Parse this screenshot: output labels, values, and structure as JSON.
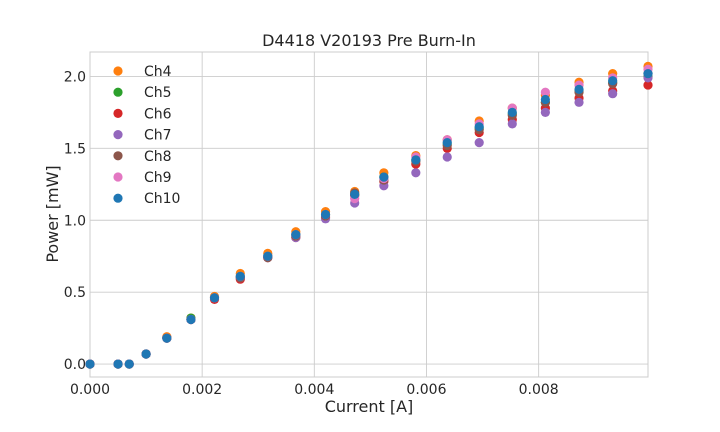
{
  "chart_data": {
    "type": "scatter",
    "title": "D4418 V20193 Pre Burn-In",
    "xlabel": "Current [A]",
    "ylabel": "Power [mW]",
    "xlim": [
      0,
      0.00995
    ],
    "ylim": [
      -0.09,
      2.17
    ],
    "x_ticks": [
      "0.000",
      "0.002",
      "0.004",
      "0.006",
      "0.008"
    ],
    "y_ticks": [
      "0.0",
      "0.5",
      "1.0",
      "1.5",
      "2.0"
    ],
    "grid": true,
    "legend_position": "upper-left",
    "x": [
      0,
      0.0005,
      0.0007,
      0.001,
      0.00137,
      0.0018,
      0.00222,
      0.00268,
      0.00317,
      0.00367,
      0.0042,
      0.00472,
      0.00524,
      0.00581,
      0.00637,
      0.00694,
      0.00753,
      0.00812,
      0.00872,
      0.00932,
      0.00995
    ],
    "series": [
      {
        "name": "Ch4",
        "color": "#ff7f0e",
        "values": [
          0,
          0,
          0,
          0.07,
          0.19,
          0.32,
          0.47,
          0.63,
          0.77,
          0.92,
          1.06,
          1.2,
          1.33,
          1.45,
          1.56,
          1.69,
          1.78,
          1.87,
          1.96,
          2.02,
          2.07
        ]
      },
      {
        "name": "Ch5",
        "color": "#2ca02c",
        "values": [
          0,
          0,
          0,
          0.07,
          0.18,
          0.32,
          0.46,
          0.61,
          0.75,
          0.9,
          1.04,
          1.18,
          1.3,
          1.42,
          1.53,
          1.64,
          1.74,
          1.82,
          1.9,
          1.96,
          2.0
        ]
      },
      {
        "name": "Ch6",
        "color": "#d62728",
        "values": [
          0,
          0,
          0,
          0.07,
          0.18,
          0.31,
          0.45,
          0.59,
          0.74,
          0.88,
          1.02,
          1.17,
          1.27,
          1.39,
          1.5,
          1.61,
          1.7,
          1.78,
          1.85,
          1.9,
          1.94
        ]
      },
      {
        "name": "Ch7",
        "color": "#9467bd",
        "values": [
          0,
          0,
          0,
          0.07,
          0.18,
          0.31,
          0.46,
          0.6,
          0.74,
          0.88,
          1.01,
          1.12,
          1.24,
          1.33,
          1.44,
          1.54,
          1.67,
          1.75,
          1.82,
          1.88,
          1.99
        ]
      },
      {
        "name": "Ch8",
        "color": "#8c564b",
        "values": [
          0,
          0,
          0,
          0.07,
          0.18,
          0.31,
          0.46,
          0.6,
          0.74,
          0.89,
          1.03,
          1.19,
          1.28,
          1.41,
          1.52,
          1.63,
          1.73,
          1.82,
          1.89,
          1.95,
          2.02
        ]
      },
      {
        "name": "Ch9",
        "color": "#e377c2",
        "values": [
          0,
          0,
          0,
          0.07,
          0.18,
          0.31,
          0.46,
          0.61,
          0.75,
          0.9,
          1.04,
          1.15,
          1.29,
          1.44,
          1.56,
          1.67,
          1.78,
          1.89,
          1.94,
          1.99,
          2.05
        ]
      },
      {
        "name": "Ch10",
        "color": "#1f77b4",
        "values": [
          0,
          0,
          0,
          0.07,
          0.18,
          0.31,
          0.46,
          0.61,
          0.75,
          0.9,
          1.04,
          1.18,
          1.3,
          1.42,
          1.54,
          1.65,
          1.75,
          1.84,
          1.91,
          1.97,
          2.02
        ]
      }
    ]
  }
}
